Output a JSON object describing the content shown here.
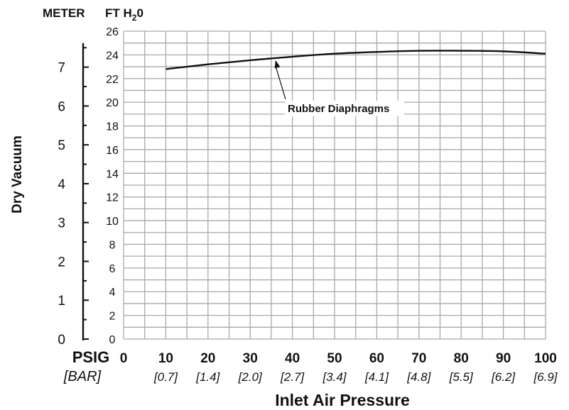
{
  "chart_data": {
    "type": "line",
    "ylabel": "Dry Vacuum",
    "xlabel": "Inlet Air Pressure",
    "left_axis_unit": "METER",
    "right_axis_unit_main": "FT H",
    "right_axis_unit_sub": "2",
    "right_axis_unit_tail": "0",
    "x_axis_unit": "PSIG",
    "x_axis_unit_alt": "[BAR]",
    "x_ticks": [
      "0",
      "10",
      "20",
      "30",
      "40",
      "50",
      "60",
      "70",
      "80",
      "90",
      "100"
    ],
    "x_ticks_alt": [
      "[0.7]",
      "[1.4]",
      "[2.0]",
      "[2.7]",
      "[3.4]",
      "[4.1]",
      "[4.8]",
      "[5.5]",
      "[6.2]",
      "[6.9]"
    ],
    "x_tick_values": [
      0,
      10,
      20,
      30,
      40,
      50,
      60,
      70,
      80,
      90,
      100
    ],
    "x_tick_alt_values": [
      10,
      20,
      30,
      40,
      50,
      60,
      70,
      80,
      90,
      100
    ],
    "xlim": [
      0,
      100
    ],
    "ylim": [
      0,
      26
    ],
    "y_ticks_ft": [
      "0",
      "2",
      "4",
      "6",
      "8",
      "10",
      "12",
      "14",
      "16",
      "18",
      "20",
      "22",
      "24",
      "26"
    ],
    "y_tick_ft_values": [
      0,
      2,
      4,
      6,
      8,
      10,
      12,
      14,
      16,
      18,
      20,
      22,
      24,
      26
    ],
    "y_ticks_m": [
      "0",
      "1",
      "2",
      "3",
      "4",
      "5",
      "6",
      "7"
    ],
    "y_tick_m_values": [
      0,
      1,
      2,
      3,
      4,
      5,
      6,
      7
    ],
    "meters_per_ft": 0.3048,
    "grid": true,
    "series": [
      {
        "name": "Rubber Diaphragms",
        "x": [
          10,
          20,
          30,
          40,
          50,
          60,
          70,
          80,
          90,
          100
        ],
        "y": [
          22.8,
          23.2,
          23.55,
          23.85,
          24.1,
          24.25,
          24.35,
          24.35,
          24.3,
          24.1
        ]
      }
    ],
    "annotation": {
      "text": "Rubber Diaphragms",
      "x": 36,
      "y": 23.8
    },
    "line_color": "#111111",
    "grid_color": "#a9a9a9"
  }
}
